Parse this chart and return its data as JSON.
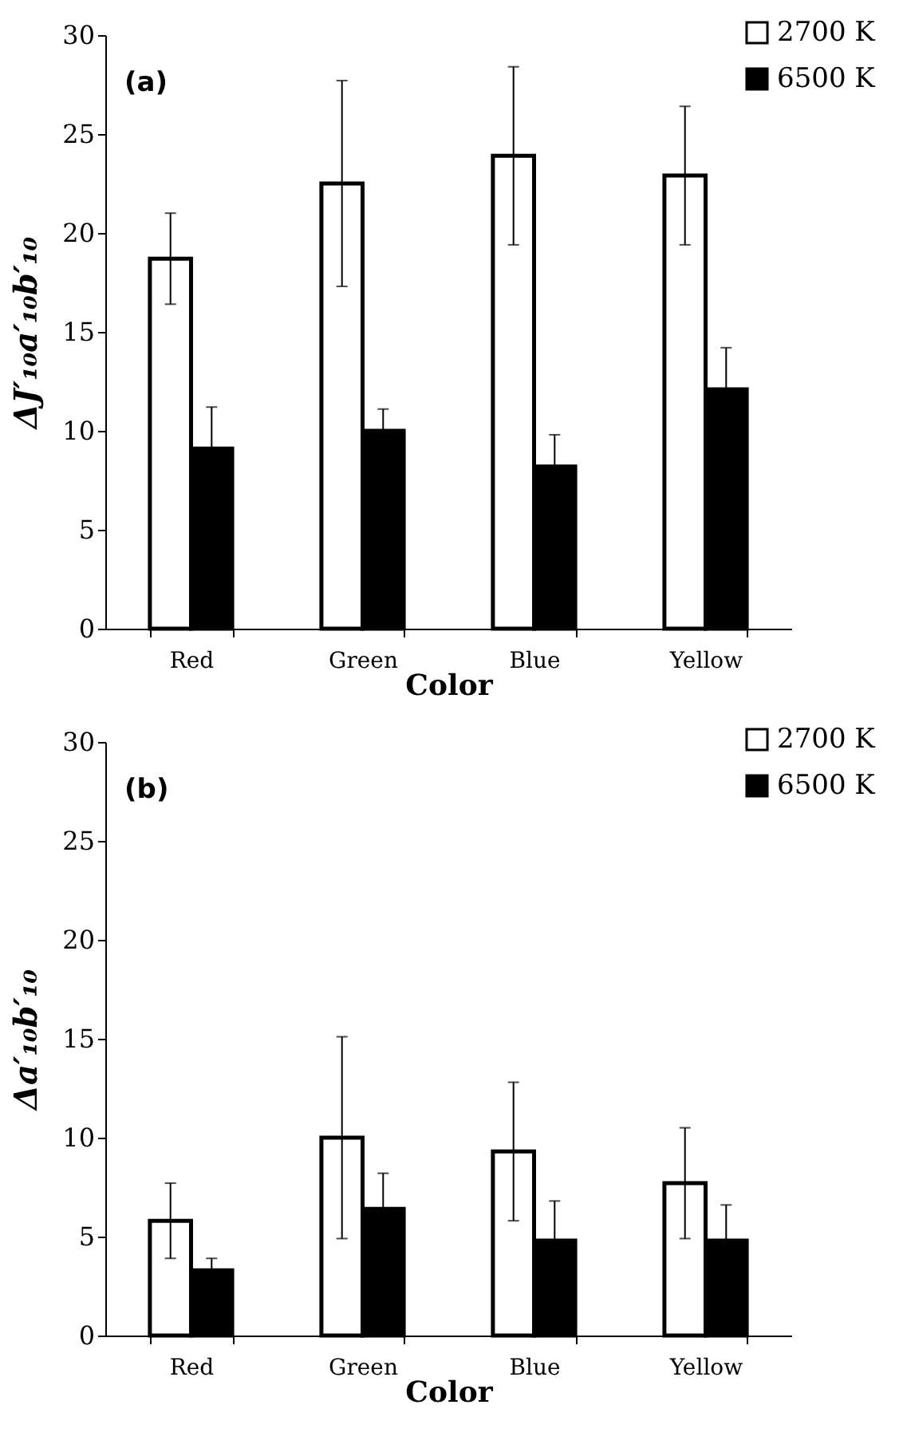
{
  "chart_data": [
    {
      "type": "bar",
      "annotations": [
        "(a)"
      ],
      "xlabel": "Color",
      "ylabel": "ΔJ′₁₀a′₁₀b′₁₀",
      "categories": [
        "Red",
        "Green",
        "Blue",
        "Yellow"
      ],
      "series": [
        {
          "name": "2700 K",
          "color": "#ffffff",
          "values": [
            18.7,
            22.5,
            23.9,
            22.9
          ],
          "errors": [
            2.3,
            5.2,
            4.5,
            3.5
          ]
        },
        {
          "name": "6500 K",
          "color": "#000000",
          "values": [
            9.1,
            10.0,
            8.2,
            12.1
          ],
          "errors": [
            2.1,
            1.1,
            1.6,
            2.1
          ]
        }
      ],
      "ylim": [
        0,
        30
      ],
      "yticks": [
        0,
        5,
        10,
        15,
        20,
        25,
        30
      ],
      "grid": false,
      "legend": "top right"
    },
    {
      "type": "bar",
      "annotations": [
        "(b)"
      ],
      "xlabel": "Color",
      "ylabel": "Δa′₁₀b′₁₀",
      "categories": [
        "Red",
        "Green",
        "Blue",
        "Yellow"
      ],
      "series": [
        {
          "name": "2700 K",
          "color": "#ffffff",
          "values": [
            5.8,
            10.0,
            9.3,
            7.7
          ],
          "errors": [
            1.9,
            5.1,
            3.5,
            2.8
          ]
        },
        {
          "name": "6500 K",
          "color": "#000000",
          "values": [
            3.3,
            6.4,
            4.8,
            4.8
          ],
          "errors": [
            0.6,
            1.8,
            2.0,
            1.8
          ]
        }
      ],
      "ylim": [
        0,
        30
      ],
      "yticks": [
        0,
        5,
        10,
        15,
        20,
        25,
        30
      ],
      "grid": false,
      "legend": "top right"
    }
  ]
}
